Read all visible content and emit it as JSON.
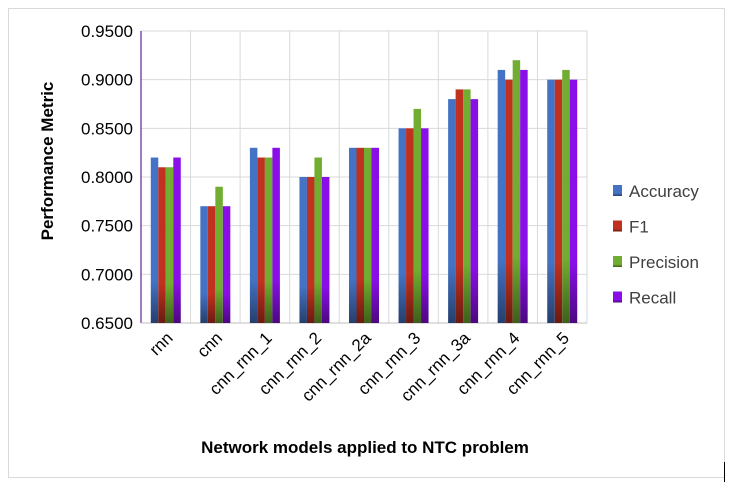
{
  "chart_data": {
    "type": "bar",
    "title": "",
    "xlabel": "Network models applied to NTC problem",
    "ylabel": "Performance Metric",
    "ylim": [
      0.65,
      0.95
    ],
    "ytick_step": 0.05,
    "ytick_labels": [
      "0.6500",
      "0.7000",
      "0.7500",
      "0.8000",
      "0.8500",
      "0.9000",
      "0.9500"
    ],
    "grid": true,
    "legend_position": "right",
    "categories": [
      "rnn",
      "cnn",
      "cnn_rnn_1",
      "cnn_rnn_2",
      "cnn_rnn_2a",
      "cnn_rnn_3",
      "cnn_rnn_3a",
      "cnn_rnn_4",
      "cnn_rnn_5"
    ],
    "series": [
      {
        "name": "Accuracy",
        "color": "#4472c4",
        "values": [
          0.82,
          0.77,
          0.83,
          0.8,
          0.83,
          0.85,
          0.88,
          0.91,
          0.9
        ]
      },
      {
        "name": "F1",
        "color": "#c0311f",
        "values": [
          0.81,
          0.77,
          0.82,
          0.8,
          0.83,
          0.85,
          0.89,
          0.9,
          0.9
        ]
      },
      {
        "name": "Precision",
        "color": "#70ad30",
        "values": [
          0.81,
          0.79,
          0.82,
          0.82,
          0.83,
          0.87,
          0.89,
          0.92,
          0.91
        ]
      },
      {
        "name": "Recall",
        "color": "#8a0ee8",
        "values": [
          0.82,
          0.77,
          0.83,
          0.8,
          0.83,
          0.85,
          0.88,
          0.91,
          0.9
        ]
      }
    ]
  }
}
